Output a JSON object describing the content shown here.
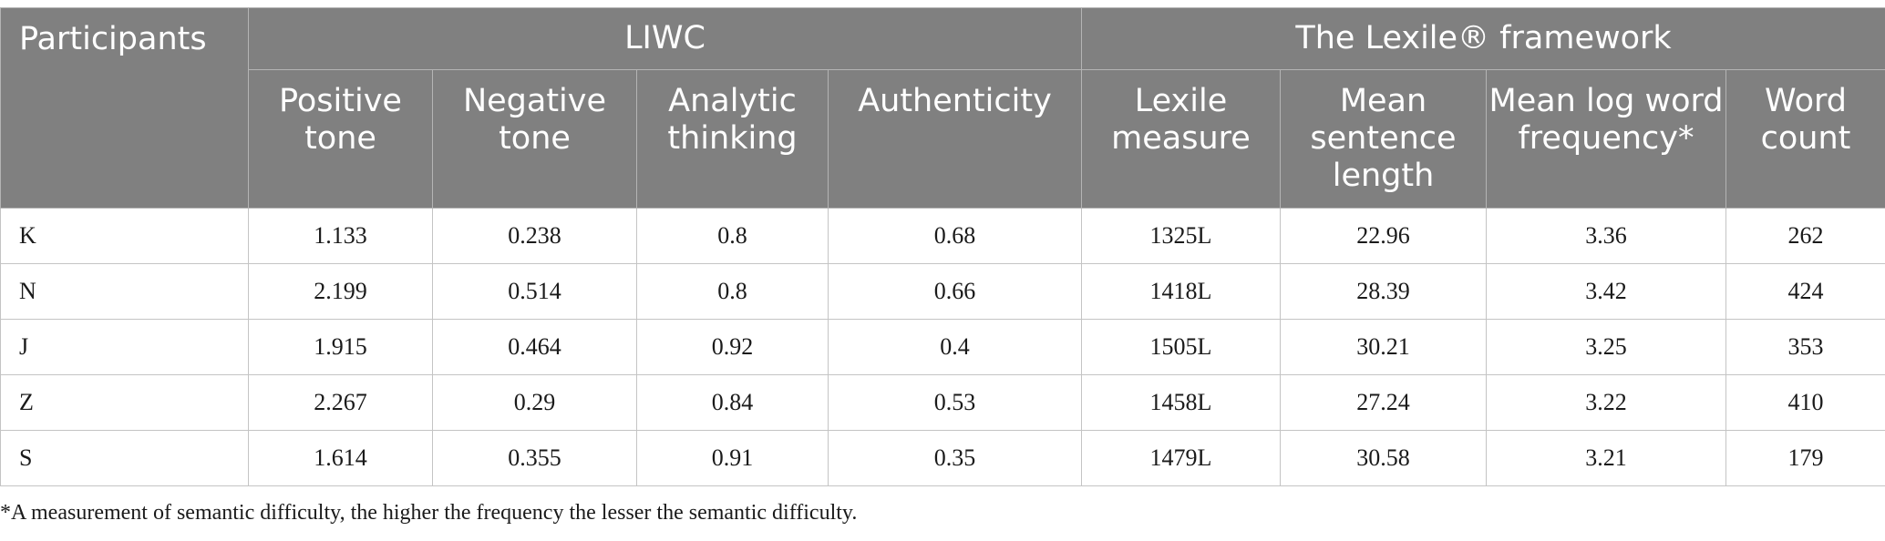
{
  "table": {
    "headers": {
      "participants": "Participants",
      "group_liwc": "LIWC",
      "group_lexile": "The Lexile® framework",
      "positive_tone": "Positive tone",
      "negative_tone": "Negative tone",
      "analytic_thinking": "Analytic thinking",
      "authenticity": "Authenticity",
      "lexile_measure": "Lexile measure",
      "mean_sentence_length": "Mean sentence length",
      "mean_log_word_frequency": "Mean log word frequency*",
      "word_count": "Word count"
    },
    "rows": [
      {
        "participant": "K",
        "positive_tone": "1.133",
        "negative_tone": "0.238",
        "analytic_thinking": "0.8",
        "authenticity": "0.68",
        "lexile_measure": "1325L",
        "mean_sentence_length": "22.96",
        "mean_log_word_frequency": "3.36",
        "word_count": "262"
      },
      {
        "participant": "N",
        "positive_tone": "2.199",
        "negative_tone": "0.514",
        "analytic_thinking": "0.8",
        "authenticity": "0.66",
        "lexile_measure": "1418L",
        "mean_sentence_length": "28.39",
        "mean_log_word_frequency": "3.42",
        "word_count": "424"
      },
      {
        "participant": "J",
        "positive_tone": "1.915",
        "negative_tone": "0.464",
        "analytic_thinking": "0.92",
        "authenticity": "0.4",
        "lexile_measure": "1505L",
        "mean_sentence_length": "30.21",
        "mean_log_word_frequency": "3.25",
        "word_count": "353"
      },
      {
        "participant": "Z",
        "positive_tone": "2.267",
        "negative_tone": "0.29",
        "analytic_thinking": "0.84",
        "authenticity": "0.53",
        "lexile_measure": "1458L",
        "mean_sentence_length": "27.24",
        "mean_log_word_frequency": "3.22",
        "word_count": "410"
      },
      {
        "participant": "S",
        "positive_tone": "1.614",
        "negative_tone": "0.355",
        "analytic_thinking": "0.91",
        "authenticity": "0.35",
        "lexile_measure": "1479L",
        "mean_sentence_length": "30.58",
        "mean_log_word_frequency": "3.21",
        "word_count": "179"
      }
    ]
  },
  "footnote": "*A measurement of semantic difficulty, the higher the frequency the lesser the semantic difficulty.",
  "colors": {
    "header_bg": "#808080",
    "header_text": "#ffffff",
    "grid": "#c4c4c4"
  }
}
